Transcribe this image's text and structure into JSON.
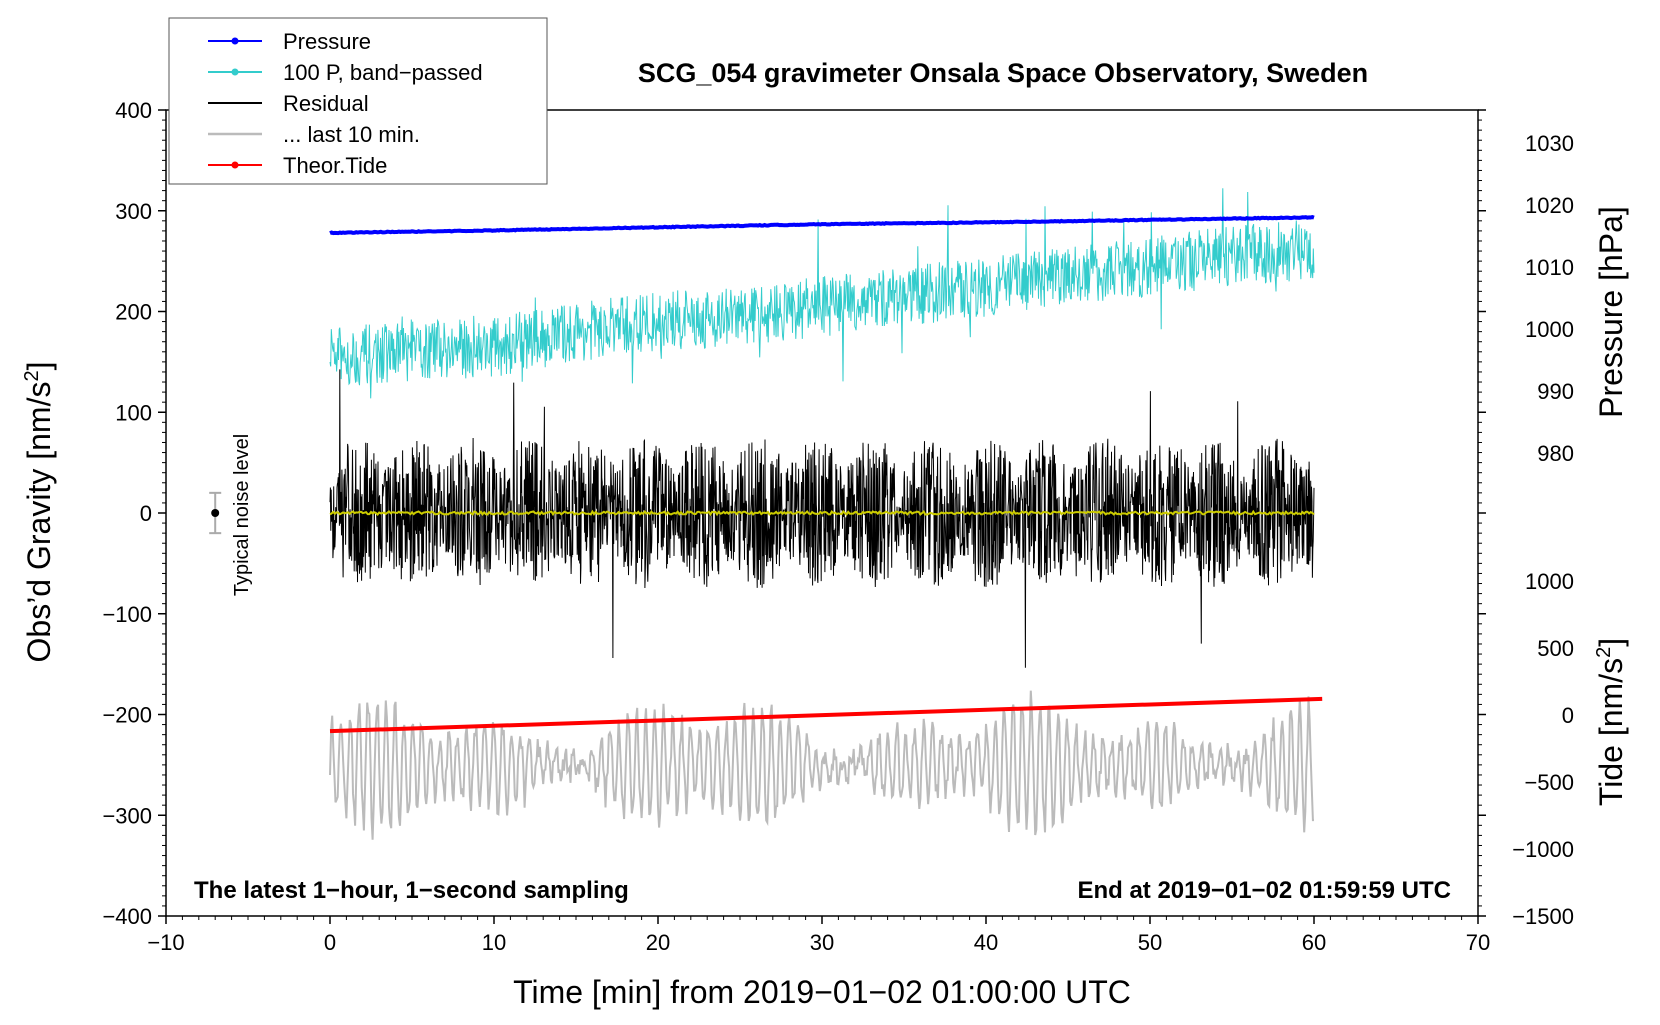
{
  "chart_data": {
    "type": "line",
    "title": "SCG_054 gravimeter Onsala Space Observatory, Sweden",
    "xlabel": "Time [min] from 2019−01−02 01:00:00 UTC",
    "ylabel_left": "Obs’d Gravity [nm/s",
    "ylabel_left_sup": "2",
    "ylabel_left_close": "]",
    "ylabel_pressure": "Pressure [hPa]",
    "ylabel_tide": "Tide [nm/s",
    "ylabel_tide_sup": "2",
    "ylabel_tide_close": "]",
    "xlim": [
      -10,
      70
    ],
    "ylim_left": [
      -400,
      400
    ],
    "pressure_range": [
      975,
      1030
    ],
    "tide_range": [
      -1500,
      1000
    ],
    "x_ticks": [
      "−10",
      "0",
      "10",
      "20",
      "30",
      "40",
      "50",
      "60",
      "70"
    ],
    "y_ticks_left": [
      "400",
      "300",
      "200",
      "100",
      "0",
      "−100",
      "−200",
      "−300",
      "−400"
    ],
    "pressure_ticks": [
      "1030",
      "1020",
      "1010",
      "1000",
      "990",
      "980"
    ],
    "tide_ticks": [
      "1000",
      "500",
      "0",
      "−500",
      "−1000",
      "−1500"
    ],
    "legend": [
      {
        "label": "Pressure",
        "color": "#0000ff",
        "marker": true
      },
      {
        "label": "100 P, band−passed",
        "color": "#33cccc",
        "marker": true
      },
      {
        "label": "Residual",
        "color": "#000000",
        "marker": false
      },
      {
        "label": "... last 10 min.",
        "color": "#bbbbbb",
        "marker": false
      },
      {
        "label": "Theor.Tide",
        "color": "#ff0000",
        "marker": true
      }
    ],
    "annotations": {
      "noise": "Typical noise level",
      "bottom_left": "The latest 1−hour, 1−second sampling",
      "bottom_right": "End at 2019−01−02 01:59:59 UTC"
    },
    "noise_level": {
      "x": -7,
      "center": 0,
      "half_range": 20
    },
    "series": [
      {
        "name": "Pressure",
        "axis": "pressure",
        "x": [
          0,
          10,
          20,
          30,
          40,
          50,
          60
        ],
        "values": [
          1015.5,
          1015.9,
          1016.4,
          1016.9,
          1017.2,
          1017.6,
          1018.0
        ]
      },
      {
        "name": "100 P, band−passed",
        "axis": "left",
        "x": [
          0,
          5,
          10,
          15,
          20,
          25,
          30,
          35,
          40,
          45,
          50,
          55,
          60
        ],
        "values": [
          155,
          160,
          165,
          180,
          190,
          195,
          205,
          215,
          225,
          235,
          245,
          255,
          262
        ],
        "amplitude": 30
      },
      {
        "name": "Residual",
        "axis": "left",
        "x": [
          0,
          60
        ],
        "values": [
          0,
          0
        ],
        "amplitude": 75
      },
      {
        "name": "... last 10 min.",
        "axis": "left",
        "x": [
          0,
          60
        ],
        "values": [
          -250,
          -250
        ],
        "amplitude": 65
      },
      {
        "name": "Theor.Tide",
        "axis": "tide",
        "x": [
          0,
          60.5
        ],
        "values": [
          -120,
          120
        ]
      }
    ]
  }
}
